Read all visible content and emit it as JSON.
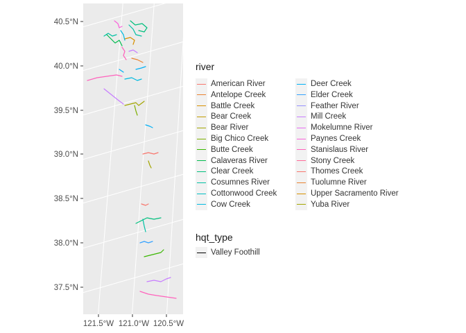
{
  "chart_data": {
    "type": "map",
    "title": "",
    "axes": {
      "y_ticks": [
        "40.5°N",
        "40.0°N",
        "39.5°N",
        "39.0°N",
        "38.5°N",
        "38.0°N",
        "37.5°N"
      ],
      "x_ticks": [
        "121.5°W",
        "121.0°W",
        "120.5°W"
      ]
    },
    "legend": {
      "river_title": "river",
      "rivers": [
        {
          "name": "American River",
          "color": "#F8766D"
        },
        {
          "name": "Antelope Creek",
          "color": "#EA8331"
        },
        {
          "name": "Battle Creek",
          "color": "#D89000"
        },
        {
          "name": "Bear Creek",
          "color": "#C09B00"
        },
        {
          "name": "Bear River",
          "color": "#A3A500"
        },
        {
          "name": "Big Chico Creek",
          "color": "#7CAE00"
        },
        {
          "name": "Butte Creek",
          "color": "#39B600"
        },
        {
          "name": "Calaveras River",
          "color": "#00BB4E"
        },
        {
          "name": "Clear Creek",
          "color": "#00BF7D"
        },
        {
          "name": "Cosumnes River",
          "color": "#00C1A3"
        },
        {
          "name": "Cottonwood Creek",
          "color": "#00BFC4"
        },
        {
          "name": "Cow Creek",
          "color": "#00BAE0"
        },
        {
          "name": "Deer Creek",
          "color": "#00B0F6"
        },
        {
          "name": "Elder Creek",
          "color": "#35A2FF"
        },
        {
          "name": "Feather River",
          "color": "#9590FF"
        },
        {
          "name": "Mill Creek",
          "color": "#C77CFF"
        },
        {
          "name": "Mokelumne River",
          "color": "#E76BF3"
        },
        {
          "name": "Paynes Creek",
          "color": "#FA62DB"
        },
        {
          "name": "Stanislaus River",
          "color": "#FF62BC"
        },
        {
          "name": "Stony Creek",
          "color": "#FF6A98"
        },
        {
          "name": "Thomes Creek",
          "color": "#F8766D"
        },
        {
          "name": "Tuolumne River",
          "color": "#EA8331"
        },
        {
          "name": "Upper Sacramento River",
          "color": "#D89000"
        },
        {
          "name": "Yuba River",
          "color": "#A3A500"
        }
      ],
      "hqt_title": "hqt_type",
      "hqt_types": [
        {
          "name": "Valley Foothill",
          "color": "#000000"
        }
      ]
    },
    "colors": {
      "panel_bg": "#EBEBEB",
      "grid": "#FFFFFF"
    }
  }
}
